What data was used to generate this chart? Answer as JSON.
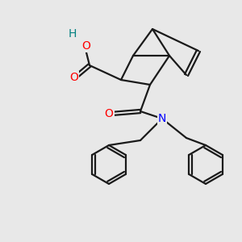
{
  "bg_color": "#e8e8e8",
  "atom_colors": {
    "O": "#ff0000",
    "N": "#0000ff",
    "C": "#000000",
    "H": "#008080"
  },
  "bond_color": "#1a1a1a",
  "bond_width": 1.6,
  "figsize": [
    3.0,
    3.0
  ],
  "dpi": 100
}
